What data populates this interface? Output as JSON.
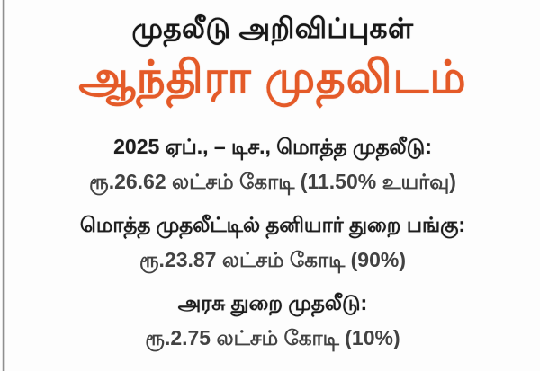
{
  "graphic": {
    "title": "முதலீடு அறிவிப்புகள்",
    "headline": "ஆந்திரா முதலிடம்",
    "accent_color": "#e45a28"
  },
  "stats": [
    {
      "label": "2025 ஏப்., – டிச., மொத்த முதலீடு:",
      "value": "ரூ.26.62 லட்சம் கோடி (11.50% உயர்வு)"
    },
    {
      "label": "மொத்த முதலீட்டில் தனியார் துறை பங்கு:",
      "value": "ரூ.23.87 லட்சம் கோடி (90%)"
    },
    {
      "label": "அரசு துறை முதலீடு:",
      "value": "ரூ.2.75 லட்சம் கோடி (10%)"
    }
  ]
}
